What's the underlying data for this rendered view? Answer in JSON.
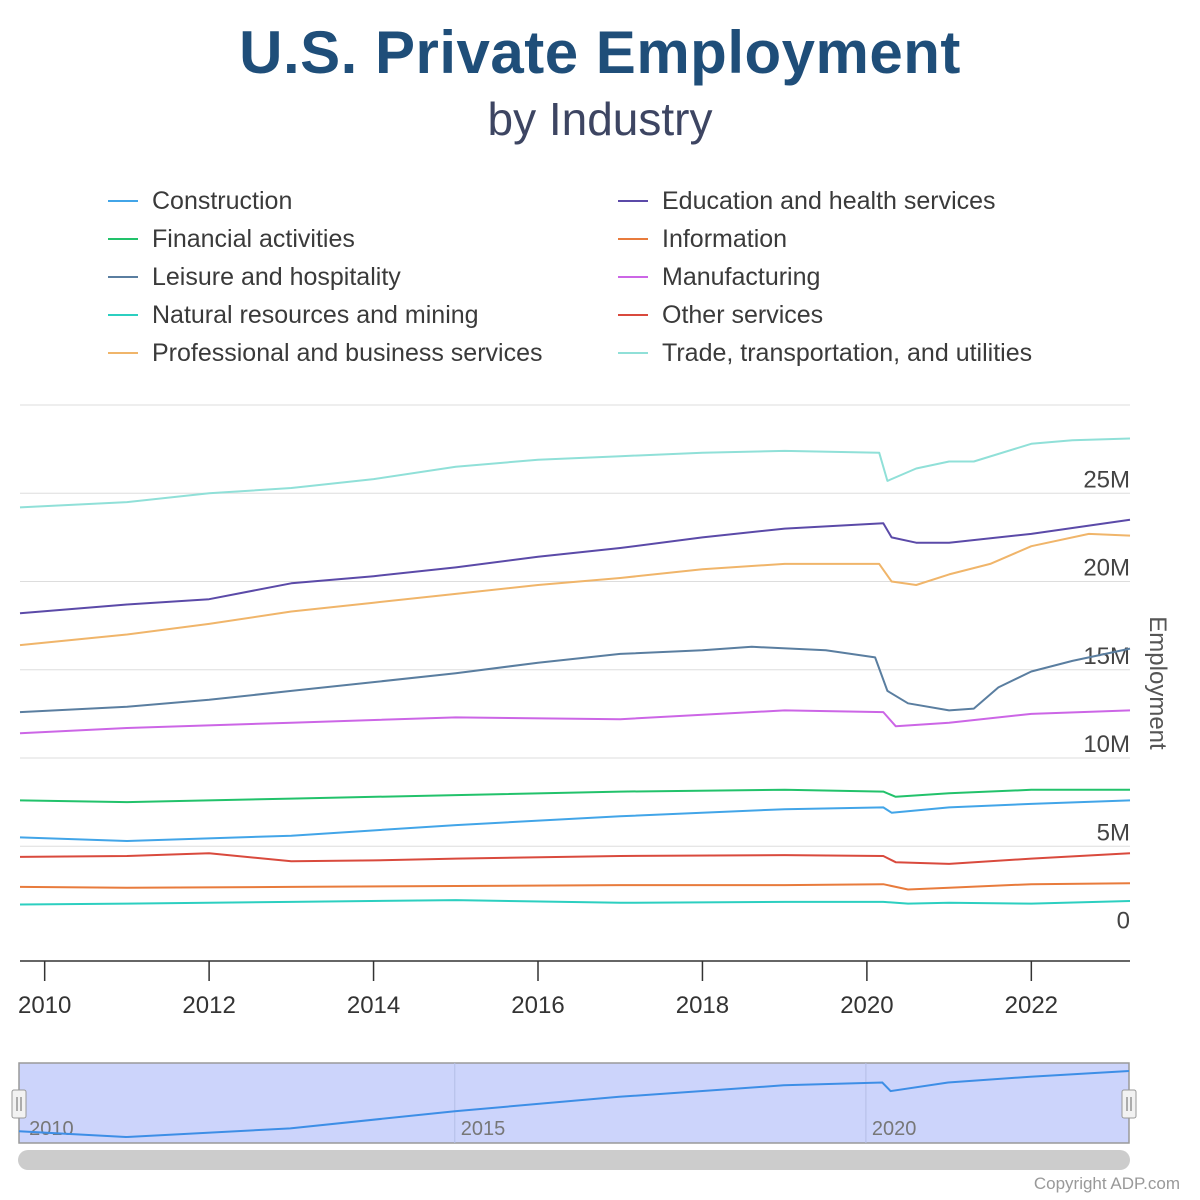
{
  "header": {
    "title": "U.S. Private Employment",
    "subtitle": "by Industry"
  },
  "footer": {
    "copyright": "Copyright ADP.com"
  },
  "navigator": {
    "labels": [
      "2010",
      "2015",
      "2020"
    ]
  },
  "chart_data": {
    "type": "line",
    "ylabel": "Employment",
    "xlabel": "",
    "xlim": [
      2009.7,
      2023.2
    ],
    "ylim": [
      -1500000,
      30000000
    ],
    "y_ticks": [
      0,
      5000000,
      10000000,
      15000000,
      20000000,
      25000000
    ],
    "y_tick_labels": [
      "0",
      "5M",
      "10M",
      "15M",
      "20M",
      "25M"
    ],
    "x_tick_labels": [
      "2010",
      "2012",
      "2014",
      "2016",
      "2018",
      "2020",
      "2022"
    ],
    "x_ticks": [
      2010,
      2012,
      2014,
      2016,
      2018,
      2020,
      2022
    ],
    "grid": true,
    "legend_position": "top",
    "series": [
      {
        "name": "Construction",
        "color": "#42a5e8",
        "x": [
          2009.7,
          2011,
          2013,
          2015,
          2017,
          2019,
          2020.2,
          2020.3,
          2021,
          2022,
          2023.2
        ],
        "y": [
          5500000,
          5300000,
          5600000,
          6200000,
          6700000,
          7100000,
          7200000,
          6900000,
          7200000,
          7400000,
          7600000
        ]
      },
      {
        "name": "Education and health services",
        "color": "#5b4aa8",
        "x": [
          2009.7,
          2011,
          2012,
          2013,
          2014,
          2015,
          2016,
          2017,
          2018,
          2019,
          2020.2,
          2020.3,
          2020.6,
          2021,
          2022,
          2023.2
        ],
        "y": [
          18200000,
          18700000,
          19000000,
          19900000,
          20300000,
          20800000,
          21400000,
          21900000,
          22500000,
          23000000,
          23300000,
          22500000,
          22200000,
          22200000,
          22700000,
          23500000
        ]
      },
      {
        "name": "Financial activities",
        "color": "#22c26b",
        "x": [
          2009.7,
          2011,
          2013,
          2015,
          2017,
          2019,
          2020.2,
          2020.35,
          2021,
          2022,
          2023.2
        ],
        "y": [
          7600000,
          7500000,
          7700000,
          7900000,
          8100000,
          8200000,
          8100000,
          7800000,
          8000000,
          8200000,
          8200000
        ]
      },
      {
        "name": "Information",
        "color": "#e87b3c",
        "x": [
          2009.7,
          2011,
          2013,
          2015,
          2017,
          2019,
          2020.2,
          2020.5,
          2021,
          2022,
          2023.2
        ],
        "y": [
          2700000,
          2650000,
          2700000,
          2750000,
          2800000,
          2800000,
          2850000,
          2550000,
          2650000,
          2850000,
          2900000
        ]
      },
      {
        "name": "Leisure and hospitality",
        "color": "#5a7ea0",
        "x": [
          2009.7,
          2011,
          2012,
          2013,
          2014,
          2015,
          2016,
          2017,
          2018,
          2018.6,
          2019.5,
          2020.1,
          2020.25,
          2020.5,
          2021,
          2021.3,
          2021.6,
          2022,
          2022.5,
          2023.2
        ],
        "y": [
          12600000,
          12900000,
          13300000,
          13800000,
          14300000,
          14800000,
          15400000,
          15900000,
          16100000,
          16300000,
          16100000,
          15700000,
          13800000,
          13100000,
          12700000,
          12800000,
          14000000,
          14900000,
          15500000,
          16200000
        ]
      },
      {
        "name": "Manufacturing",
        "color": "#cc66e6",
        "x": [
          2009.7,
          2011,
          2013,
          2015,
          2017,
          2019,
          2020.2,
          2020.35,
          2021,
          2022,
          2023.2
        ],
        "y": [
          11400000,
          11700000,
          12000000,
          12300000,
          12200000,
          12700000,
          12600000,
          11800000,
          12000000,
          12500000,
          12700000
        ]
      },
      {
        "name": "Natural resources and mining",
        "color": "#2ccfc0",
        "x": [
          2009.7,
          2011,
          2013,
          2015,
          2017,
          2019,
          2020.2,
          2020.5,
          2021,
          2022,
          2023.2
        ],
        "y": [
          1700000,
          1750000,
          1850000,
          1950000,
          1800000,
          1850000,
          1850000,
          1750000,
          1800000,
          1750000,
          1900000
        ]
      },
      {
        "name": "Other services",
        "color": "#d94a3d",
        "x": [
          2009.7,
          2011,
          2012,
          2013,
          2014,
          2015,
          2017,
          2019,
          2020.2,
          2020.35,
          2021,
          2022,
          2023.2
        ],
        "y": [
          4400000,
          4450000,
          4600000,
          4150000,
          4200000,
          4300000,
          4450000,
          4500000,
          4450000,
          4100000,
          4000000,
          4300000,
          4600000
        ]
      },
      {
        "name": "Professional and business services",
        "color": "#f0b56a",
        "x": [
          2009.7,
          2011,
          2012,
          2013,
          2014,
          2015,
          2016,
          2017,
          2018,
          2019,
          2020.15,
          2020.3,
          2020.6,
          2021,
          2021.5,
          2022,
          2022.7,
          2023.2
        ],
        "y": [
          16400000,
          17000000,
          17600000,
          18300000,
          18800000,
          19300000,
          19800000,
          20200000,
          20700000,
          21000000,
          21000000,
          20000000,
          19800000,
          20400000,
          21000000,
          22000000,
          22700000,
          22600000
        ]
      },
      {
        "name": "Trade, transportation, and utilities",
        "color": "#90e0d8",
        "x": [
          2009.7,
          2011,
          2012,
          2013,
          2014,
          2015,
          2016,
          2017,
          2018,
          2019,
          2020.15,
          2020.25,
          2020.6,
          2021,
          2021.3,
          2022,
          2022.5,
          2023.2
        ],
        "y": [
          24200000,
          24500000,
          25000000,
          25300000,
          25800000,
          26500000,
          26900000,
          27100000,
          27300000,
          27400000,
          27300000,
          25700000,
          26400000,
          26800000,
          26800000,
          27800000,
          28000000,
          28100000
        ]
      }
    ]
  }
}
